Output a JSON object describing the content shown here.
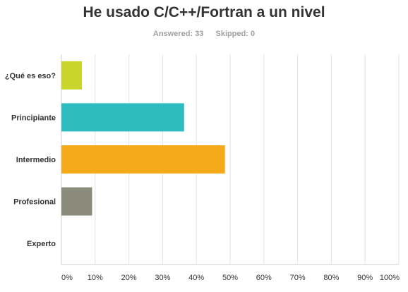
{
  "header": {
    "title": "He usado C/C++/Fortran a un nivel",
    "answered_label": "Answered: 33",
    "skipped_label": "Skipped: 0"
  },
  "chart_data": {
    "type": "bar",
    "orientation": "horizontal",
    "title": "He usado C/C++/Fortran a un nivel",
    "categories": [
      "¿Qué es eso?",
      "Principiante",
      "Intermedio",
      "Profesional",
      "Experto"
    ],
    "values": [
      6.06,
      36.36,
      48.48,
      9.09,
      0
    ],
    "colors": [
      "#c9d52a",
      "#2fbcbf",
      "#f5aa1c",
      "#8a8b7a",
      "#cccccc"
    ],
    "xlim": [
      0,
      100
    ],
    "x_ticks": [
      "0%",
      "10%",
      "20%",
      "30%",
      "40%",
      "50%",
      "60%",
      "70%",
      "80%",
      "90%",
      "100%"
    ],
    "grid": true,
    "legend": "none"
  }
}
